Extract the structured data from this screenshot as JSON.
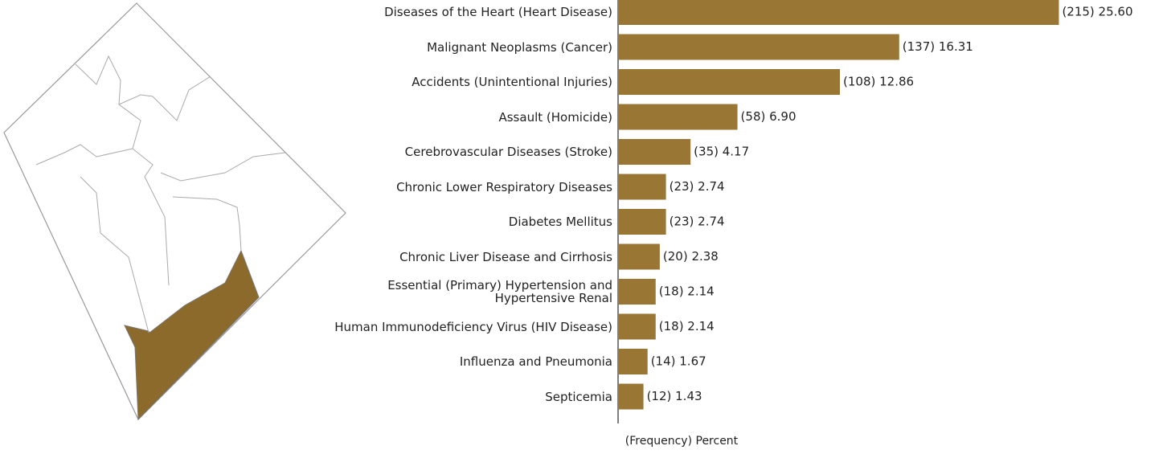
{
  "chart_data": {
    "type": "bar",
    "orientation": "horizontal",
    "x_label": "(Frequency) Percent",
    "categories": [
      "Diseases of the Heart (Heart Disease)",
      "Malignant Neoplasms (Cancer)",
      "Accidents (Unintentional Injuries)",
      "Assault (Homicide)",
      "Cerebrovascular Diseases (Stroke)",
      "Chronic Lower Respiratory Diseases",
      "Diabetes Mellitus",
      "Chronic Liver Disease and Cirrhosis",
      "Essential (Primary) Hypertension and\nHypertensive Renal",
      "Human Immunodeficiency Virus (HIV Disease)",
      "Influenza and Pneumonia",
      "Septicemia"
    ],
    "values": [
      25.6,
      16.31,
      12.86,
      6.9,
      4.17,
      2.74,
      2.74,
      2.38,
      2.14,
      2.14,
      1.67,
      1.43
    ],
    "value_labels": [
      "(215) 25.60",
      "(137) 16.31",
      "(108) 12.86",
      "(58) 6.90",
      "(35) 4.17",
      "(23) 2.74",
      "(23) 2.74",
      "(20) 2.38",
      "(18) 2.14",
      "(18) 2.14",
      "(14) 1.67",
      "(12) 1.43"
    ],
    "color": "#9a7634",
    "xlim": [
      0,
      26
    ]
  }
}
